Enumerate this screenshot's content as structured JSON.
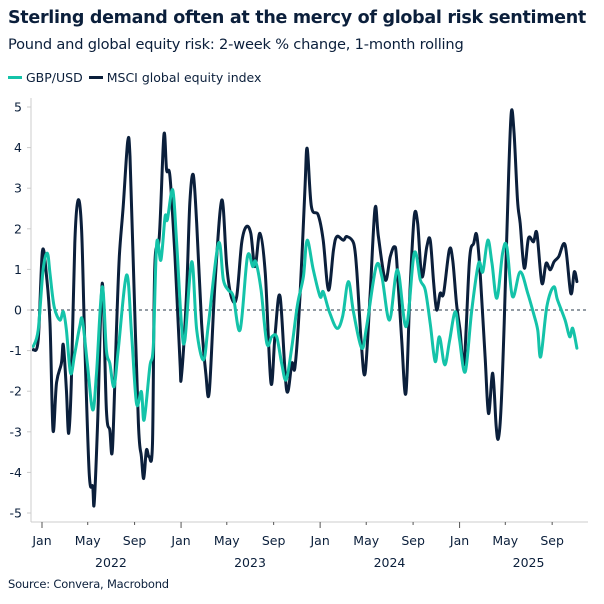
{
  "colors": {
    "gbp": "#14c3a9",
    "msci": "#0b1f3b",
    "zero_line": "#55606e",
    "axis": "#cccccc"
  },
  "chart_data": {
    "type": "line",
    "title": "Sterling demand often at the mercy of global risk sentiment",
    "subtitle": "Pound and global equity risk: 2-week % change, 1-month rolling",
    "source": "Source: Convera, Macrobond",
    "ylim": [
      -5,
      5
    ],
    "yticks": [
      "5",
      "4",
      "3",
      "2",
      "1",
      "0",
      "-1",
      "-2",
      "-3",
      "-4",
      "-5"
    ],
    "xlim": [
      "2021-12-09",
      "2025-11-20"
    ],
    "xticks_major": [
      {
        "date": "2022-01-01",
        "label": "Jan"
      },
      {
        "date": "2022-05-01",
        "label": "May"
      },
      {
        "date": "2022-09-01",
        "label": "Sep"
      },
      {
        "date": "2023-01-01",
        "label": "Jan"
      },
      {
        "date": "2023-05-01",
        "label": "May"
      },
      {
        "date": "2023-09-01",
        "label": "Sep"
      },
      {
        "date": "2024-01-01",
        "label": "Jan"
      },
      {
        "date": "2024-05-01",
        "label": "May"
      },
      {
        "date": "2024-09-01",
        "label": "Sep"
      },
      {
        "date": "2025-01-01",
        "label": "Jan"
      },
      {
        "date": "2025-05-01",
        "label": "May"
      },
      {
        "date": "2025-09-01",
        "label": "Sep"
      }
    ],
    "year_labels": [
      {
        "year": "2022",
        "center": "2022-07-01"
      },
      {
        "year": "2023",
        "center": "2023-07-01"
      },
      {
        "year": "2024",
        "center": "2024-07-01"
      },
      {
        "year": "2025",
        "center": "2025-07-01"
      }
    ],
    "zero_line": true,
    "grid": false,
    "legend_position": "top-left",
    "series": [
      {
        "name": "GBP/USD",
        "color_key": "gbp",
        "points": [
          [
            "2021-12-09",
            -0.9
          ],
          [
            "2021-12-22",
            -0.49
          ],
          [
            "2022-01-04",
            0.99
          ],
          [
            "2022-01-15",
            1.4
          ],
          [
            "2022-01-22",
            0.9
          ],
          [
            "2022-02-02",
            0.08
          ],
          [
            "2022-02-17",
            -0.25
          ],
          [
            "2022-02-26",
            -0.04
          ],
          [
            "2022-03-06",
            -0.49
          ],
          [
            "2022-03-17",
            -1.56
          ],
          [
            "2022-03-28",
            -1.07
          ],
          [
            "2022-04-10",
            -0.41
          ],
          [
            "2022-04-17",
            -0.25
          ],
          [
            "2022-04-30",
            -1.31
          ],
          [
            "2022-05-14",
            -2.46
          ],
          [
            "2022-05-24",
            -1.56
          ],
          [
            "2022-06-08",
            0.57
          ],
          [
            "2022-06-19",
            -0.99
          ],
          [
            "2022-06-28",
            -1.31
          ],
          [
            "2022-07-09",
            -1.89
          ],
          [
            "2022-07-20",
            -0.99
          ],
          [
            "2022-08-11",
            0.86
          ],
          [
            "2022-08-24",
            -0.57
          ],
          [
            "2022-09-06",
            -2.3
          ],
          [
            "2022-09-19",
            -2.01
          ],
          [
            "2022-09-26",
            -2.71
          ],
          [
            "2022-10-11",
            -1.4
          ],
          [
            "2022-10-20",
            -0.9
          ],
          [
            "2022-10-29",
            1.64
          ],
          [
            "2022-11-09",
            1.23
          ],
          [
            "2022-11-20",
            2.3
          ],
          [
            "2022-11-26",
            2.22
          ],
          [
            "2022-12-10",
            2.96
          ],
          [
            "2022-12-20",
            1.72
          ],
          [
            "2023-01-02",
            -0.33
          ],
          [
            "2023-01-11",
            -0.74
          ],
          [
            "2023-01-29",
            1.19
          ],
          [
            "2023-02-11",
            -0.49
          ],
          [
            "2023-03-01",
            -1.23
          ],
          [
            "2023-03-14",
            -0.33
          ],
          [
            "2023-04-09",
            1.64
          ],
          [
            "2023-04-22",
            0.74
          ],
          [
            "2023-05-05",
            0.49
          ],
          [
            "2023-05-18",
            0.33
          ],
          [
            "2023-06-05",
            -0.49
          ],
          [
            "2023-06-24",
            1.31
          ],
          [
            "2023-07-08",
            1.07
          ],
          [
            "2023-07-16",
            1.19
          ],
          [
            "2023-07-30",
            0.49
          ],
          [
            "2023-08-14",
            -0.82
          ],
          [
            "2023-08-27",
            -0.66
          ],
          [
            "2023-09-09",
            -0.66
          ],
          [
            "2023-09-22",
            -1.31
          ],
          [
            "2023-10-04",
            -1.72
          ],
          [
            "2023-10-19",
            -0.9
          ],
          [
            "2023-11-03",
            0.16
          ],
          [
            "2023-11-18",
            0.82
          ],
          [
            "2023-11-28",
            1.72
          ],
          [
            "2023-12-14",
            0.99
          ],
          [
            "2024-01-01",
            0.33
          ],
          [
            "2024-01-09",
            0.45
          ],
          [
            "2024-01-25",
            -0.04
          ],
          [
            "2024-02-14",
            -0.45
          ],
          [
            "2024-02-29",
            -0.16
          ],
          [
            "2024-03-15",
            0.7
          ],
          [
            "2024-03-29",
            -0.08
          ],
          [
            "2024-04-19",
            -0.94
          ],
          [
            "2024-05-02",
            -0.41
          ],
          [
            "2024-05-27",
            1.07
          ],
          [
            "2024-06-11",
            0.82
          ],
          [
            "2024-07-01",
            -0.25
          ],
          [
            "2024-07-22",
            0.99
          ],
          [
            "2024-08-14",
            -0.41
          ],
          [
            "2024-09-04",
            1.4
          ],
          [
            "2024-09-20",
            0.74
          ],
          [
            "2024-10-03",
            0.49
          ],
          [
            "2024-10-16",
            -0.33
          ],
          [
            "2024-10-29",
            -1.27
          ],
          [
            "2024-11-09",
            -0.66
          ],
          [
            "2024-11-23",
            -1.35
          ],
          [
            "2024-12-06",
            -0.74
          ],
          [
            "2024-12-21",
            -0.04
          ],
          [
            "2025-01-01",
            -0.74
          ],
          [
            "2025-01-16",
            -1.52
          ],
          [
            "2025-02-02",
            0
          ],
          [
            "2025-02-20",
            1.15
          ],
          [
            "2025-03-03",
            0.94
          ],
          [
            "2025-03-16",
            1.72
          ],
          [
            "2025-03-27",
            1.15
          ],
          [
            "2025-04-09",
            0.29
          ],
          [
            "2025-04-24",
            1.4
          ],
          [
            "2025-05-05",
            1.56
          ],
          [
            "2025-05-20",
            0.33
          ],
          [
            "2025-06-09",
            0.94
          ],
          [
            "2025-06-29",
            0.41
          ],
          [
            "2025-07-14",
            -0.08
          ],
          [
            "2025-07-25",
            -0.49
          ],
          [
            "2025-08-02",
            -1.15
          ],
          [
            "2025-08-18",
            0.08
          ],
          [
            "2025-09-05",
            0.57
          ],
          [
            "2025-09-15",
            0.25
          ],
          [
            "2025-10-05",
            -0.25
          ],
          [
            "2025-10-17",
            -0.66
          ],
          [
            "2025-10-25",
            -0.45
          ],
          [
            "2025-11-05",
            -0.94
          ]
        ]
      },
      {
        "name": "MSCI global equity index",
        "color_key": "msci",
        "points": [
          [
            "2021-12-09",
            -0.98
          ],
          [
            "2021-12-22",
            -0.74
          ],
          [
            "2022-01-02",
            1.44
          ],
          [
            "2022-01-13",
            0.82
          ],
          [
            "2022-01-22",
            -0.33
          ],
          [
            "2022-01-30",
            -2.96
          ],
          [
            "2022-02-08",
            -1.8
          ],
          [
            "2022-02-21",
            -1.31
          ],
          [
            "2022-02-26",
            -0.86
          ],
          [
            "2022-03-06",
            -1.97
          ],
          [
            "2022-03-12",
            -3.04
          ],
          [
            "2022-03-19",
            -1.8
          ],
          [
            "2022-03-28",
            1.64
          ],
          [
            "2022-04-06",
            2.71
          ],
          [
            "2022-04-15",
            1.97
          ],
          [
            "2022-04-23",
            -0.74
          ],
          [
            "2022-05-05",
            -4.02
          ],
          [
            "2022-05-14",
            -4.35
          ],
          [
            "2022-05-18",
            -4.76
          ],
          [
            "2022-05-27",
            -2.79
          ],
          [
            "2022-06-08",
            0.66
          ],
          [
            "2022-06-19",
            -2.46
          ],
          [
            "2022-06-28",
            -2.96
          ],
          [
            "2022-07-05",
            -3.41
          ],
          [
            "2022-07-16",
            -0.33
          ],
          [
            "2022-07-23",
            1.31
          ],
          [
            "2022-08-02",
            2.55
          ],
          [
            "2022-08-14",
            4.15
          ],
          [
            "2022-08-20",
            3.78
          ],
          [
            "2022-08-28",
            1.31
          ],
          [
            "2022-09-11",
            -2.79
          ],
          [
            "2022-09-19",
            -3.61
          ],
          [
            "2022-09-25",
            -4.15
          ],
          [
            "2022-10-02",
            -3.45
          ],
          [
            "2022-10-09",
            -3.61
          ],
          [
            "2022-10-18",
            -3.28
          ],
          [
            "2022-10-24",
            1.07
          ],
          [
            "2022-11-05",
            1.81
          ],
          [
            "2022-11-17",
            4.31
          ],
          [
            "2022-11-24",
            3.45
          ],
          [
            "2022-12-03",
            3.28
          ],
          [
            "2022-12-16",
            1.31
          ],
          [
            "2022-12-29",
            -1.23
          ],
          [
            "2023-01-02",
            -1.64
          ],
          [
            "2023-01-15",
            0.33
          ],
          [
            "2023-01-24",
            2.63
          ],
          [
            "2023-02-02",
            3.33
          ],
          [
            "2023-02-11",
            2.13
          ],
          [
            "2023-02-24",
            -0.33
          ],
          [
            "2023-03-07",
            -1.56
          ],
          [
            "2023-03-16",
            -2.01
          ],
          [
            "2023-03-31",
            0.66
          ],
          [
            "2023-04-18",
            2.71
          ],
          [
            "2023-05-01",
            1.07
          ],
          [
            "2023-05-14",
            0.29
          ],
          [
            "2023-05-27",
            0.33
          ],
          [
            "2023-06-09",
            1.64
          ],
          [
            "2023-06-21",
            2.05
          ],
          [
            "2023-07-03",
            1.89
          ],
          [
            "2023-07-14",
            1.07
          ],
          [
            "2023-07-27",
            1.89
          ],
          [
            "2023-08-10",
            0.9
          ],
          [
            "2023-08-25",
            -1.8
          ],
          [
            "2023-09-05",
            -0.57
          ],
          [
            "2023-09-18",
            0.33
          ],
          [
            "2023-10-05",
            -1.97
          ],
          [
            "2023-10-19",
            -1.31
          ],
          [
            "2023-10-27",
            -1.4
          ],
          [
            "2023-11-09",
            0.3
          ],
          [
            "2023-11-22",
            2.96
          ],
          [
            "2023-11-28",
            3.98
          ],
          [
            "2023-12-09",
            2.55
          ],
          [
            "2023-12-27",
            2.34
          ],
          [
            "2024-01-09",
            1.72
          ],
          [
            "2024-01-23",
            0.49
          ],
          [
            "2024-02-05",
            1.48
          ],
          [
            "2024-02-14",
            1.81
          ],
          [
            "2024-03-02",
            1.72
          ],
          [
            "2024-03-11",
            1.81
          ],
          [
            "2024-03-29",
            1.64
          ],
          [
            "2024-04-06",
            0.99
          ],
          [
            "2024-04-18",
            -0.82
          ],
          [
            "2024-04-28",
            -1.56
          ],
          [
            "2024-05-11",
            0.33
          ],
          [
            "2024-05-24",
            2.5
          ],
          [
            "2024-06-02",
            1.81
          ],
          [
            "2024-06-20",
            0.74
          ],
          [
            "2024-07-03",
            1.31
          ],
          [
            "2024-07-14",
            1.56
          ],
          [
            "2024-07-20",
            1.23
          ],
          [
            "2024-08-02",
            -0.74
          ],
          [
            "2024-08-13",
            -2.05
          ],
          [
            "2024-08-24",
            0.49
          ],
          [
            "2024-09-04",
            2.3
          ],
          [
            "2024-09-13",
            2.13
          ],
          [
            "2024-09-24",
            0.82
          ],
          [
            "2024-10-07",
            1.56
          ],
          [
            "2024-10-16",
            1.72
          ],
          [
            "2024-10-25",
            0.66
          ],
          [
            "2024-11-02",
            0
          ],
          [
            "2024-11-11",
            0.41
          ],
          [
            "2024-11-20",
            0.41
          ],
          [
            "2024-12-05",
            1.48
          ],
          [
            "2024-12-14",
            1.23
          ],
          [
            "2024-12-24",
            0.16
          ],
          [
            "2025-01-02",
            -0.49
          ],
          [
            "2025-01-13",
            -1.31
          ],
          [
            "2025-01-27",
            1.23
          ],
          [
            "2025-02-07",
            1.64
          ],
          [
            "2025-02-15",
            1.85
          ],
          [
            "2025-02-24",
            0.9
          ],
          [
            "2025-03-09",
            -1.15
          ],
          [
            "2025-03-18",
            -2.55
          ],
          [
            "2025-03-29",
            -1.56
          ],
          [
            "2025-04-07",
            -2.87
          ],
          [
            "2025-04-13",
            -3.16
          ],
          [
            "2025-04-20",
            -2.38
          ],
          [
            "2025-04-28",
            -0.33
          ],
          [
            "2025-05-10",
            3.37
          ],
          [
            "2025-05-17",
            4.89
          ],
          [
            "2025-05-24",
            4.35
          ],
          [
            "2025-06-02",
            2.71
          ],
          [
            "2025-06-09",
            2.13
          ],
          [
            "2025-06-20",
            1.03
          ],
          [
            "2025-07-01",
            1.77
          ],
          [
            "2025-07-14",
            1.68
          ],
          [
            "2025-07-23",
            1.89
          ],
          [
            "2025-08-05",
            0.66
          ],
          [
            "2025-08-16",
            1.15
          ],
          [
            "2025-08-27",
            0.99
          ],
          [
            "2025-09-06",
            1.19
          ],
          [
            "2025-09-18",
            1.31
          ],
          [
            "2025-10-05",
            1.6
          ],
          [
            "2025-10-20",
            0.41
          ],
          [
            "2025-10-29",
            0.94
          ],
          [
            "2025-11-05",
            0.7
          ]
        ]
      }
    ]
  }
}
